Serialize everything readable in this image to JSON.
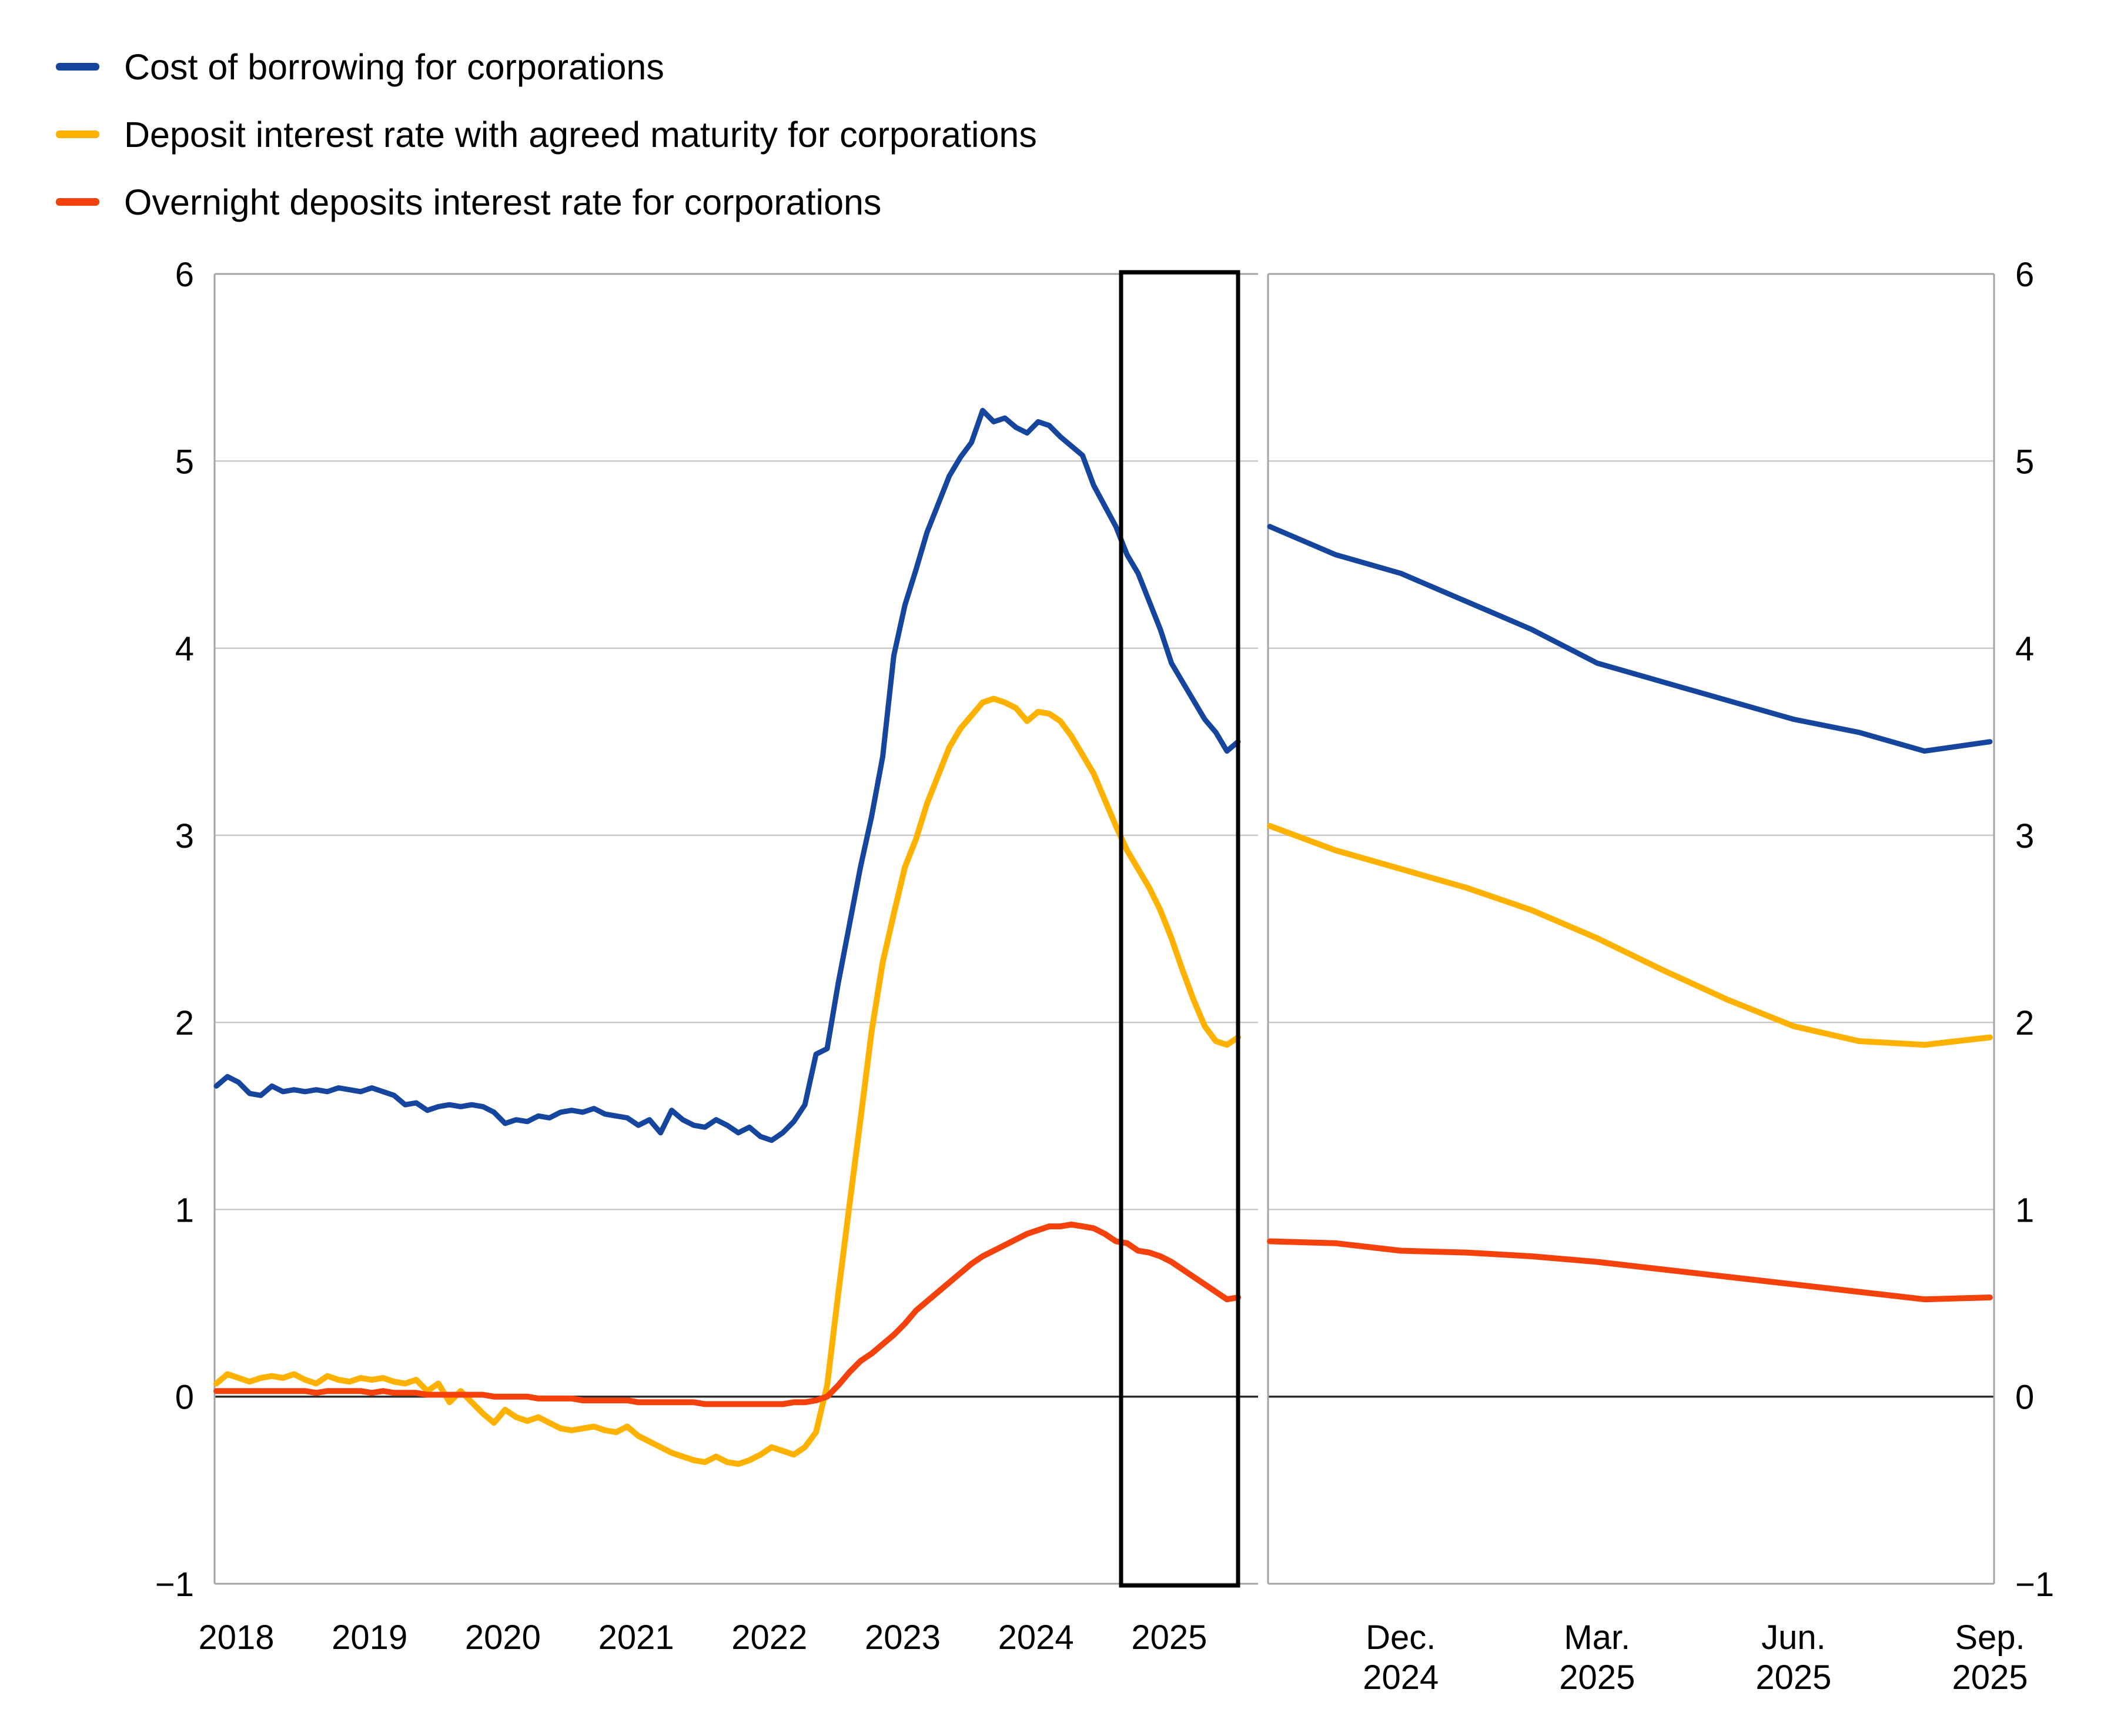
{
  "legend": {
    "items": [
      {
        "label": "Cost of borrowing for corporations",
        "color": "#15459C"
      },
      {
        "label": "Deposit interest rate with agreed maturity for corporations",
        "color": "#FFB100"
      },
      {
        "label": "Overnight deposits interest rate for corporations",
        "color": "#F5420D"
      }
    ]
  },
  "axis": {
    "ymin": -1,
    "ymax": 6,
    "yticks": [
      6,
      5,
      4,
      3,
      2,
      1,
      0,
      -1
    ]
  },
  "chart_data": [
    {
      "type": "line",
      "panel": "main",
      "x_start": "2018-01",
      "x_end": "2025-09",
      "x_freq": "monthly",
      "x_tick_labels": [
        "2018",
        "2019",
        "2020",
        "2021",
        "2022",
        "2023",
        "2024",
        "2025"
      ],
      "ylim": [
        -1,
        6
      ],
      "yticks": [
        6,
        5,
        4,
        3,
        2,
        1,
        0,
        -1
      ],
      "grid": true,
      "highlight_box_on_last_12_months": true,
      "series": [
        {
          "name": "Cost of borrowing for corporations",
          "color": "#15459C",
          "values": [
            1.66,
            1.71,
            1.68,
            1.62,
            1.61,
            1.66,
            1.63,
            1.64,
            1.63,
            1.64,
            1.63,
            1.65,
            1.64,
            1.63,
            1.65,
            1.63,
            1.61,
            1.56,
            1.57,
            1.53,
            1.55,
            1.56,
            1.55,
            1.56,
            1.55,
            1.52,
            1.46,
            1.48,
            1.47,
            1.5,
            1.49,
            1.52,
            1.53,
            1.52,
            1.54,
            1.51,
            1.5,
            1.49,
            1.45,
            1.48,
            1.41,
            1.53,
            1.48,
            1.45,
            1.44,
            1.48,
            1.45,
            1.41,
            1.44,
            1.39,
            1.37,
            1.41,
            1.47,
            1.56,
            1.83,
            1.86,
            2.21,
            2.52,
            2.83,
            3.1,
            3.42,
            3.96,
            4.23,
            4.42,
            4.62,
            4.77,
            4.92,
            5.02,
            5.1,
            5.27,
            5.21,
            5.23,
            5.18,
            5.15,
            5.21,
            5.19,
            5.13,
            5.08,
            5.03,
            4.87,
            4.76,
            4.65,
            4.5,
            4.4,
            4.25,
            4.1,
            3.92,
            3.82,
            3.72,
            3.62,
            3.55,
            3.45,
            3.5
          ]
        },
        {
          "name": "Deposit interest rate with agreed maturity for corporations",
          "color": "#FFB100",
          "values": [
            0.07,
            0.12,
            0.1,
            0.08,
            0.1,
            0.11,
            0.1,
            0.12,
            0.09,
            0.07,
            0.11,
            0.09,
            0.08,
            0.1,
            0.09,
            0.1,
            0.08,
            0.07,
            0.09,
            0.03,
            0.07,
            -0.03,
            0.03,
            -0.03,
            -0.09,
            -0.14,
            -0.07,
            -0.11,
            -0.13,
            -0.11,
            -0.14,
            -0.17,
            -0.18,
            -0.17,
            -0.16,
            -0.18,
            -0.19,
            -0.16,
            -0.21,
            -0.24,
            -0.27,
            -0.3,
            -0.32,
            -0.34,
            -0.35,
            -0.32,
            -0.35,
            -0.36,
            -0.34,
            -0.31,
            -0.27,
            -0.29,
            -0.31,
            -0.27,
            -0.19,
            0.06,
            0.55,
            1.02,
            1.48,
            1.95,
            2.32,
            2.58,
            2.83,
            2.98,
            3.17,
            3.32,
            3.47,
            3.57,
            3.64,
            3.71,
            3.73,
            3.71,
            3.68,
            3.61,
            3.66,
            3.65,
            3.61,
            3.53,
            3.43,
            3.33,
            3.19,
            3.05,
            2.92,
            2.82,
            2.72,
            2.6,
            2.45,
            2.28,
            2.12,
            1.98,
            1.9,
            1.88,
            1.92
          ]
        },
        {
          "name": "Overnight deposits interest rate for corporations",
          "color": "#F5420D",
          "values": [
            0.03,
            0.03,
            0.03,
            0.03,
            0.03,
            0.03,
            0.03,
            0.03,
            0.03,
            0.02,
            0.03,
            0.03,
            0.03,
            0.03,
            0.02,
            0.03,
            0.02,
            0.02,
            0.02,
            0.01,
            0.01,
            0.01,
            0.01,
            0.01,
            0.01,
            0.0,
            0.0,
            0.0,
            0.0,
            -0.01,
            -0.01,
            -0.01,
            -0.01,
            -0.02,
            -0.02,
            -0.02,
            -0.02,
            -0.02,
            -0.03,
            -0.03,
            -0.03,
            -0.03,
            -0.03,
            -0.03,
            -0.04,
            -0.04,
            -0.04,
            -0.04,
            -0.04,
            -0.04,
            -0.04,
            -0.04,
            -0.03,
            -0.03,
            -0.02,
            0.0,
            0.06,
            0.13,
            0.19,
            0.23,
            0.28,
            0.33,
            0.39,
            0.46,
            0.51,
            0.56,
            0.61,
            0.66,
            0.71,
            0.75,
            0.78,
            0.81,
            0.84,
            0.87,
            0.89,
            0.91,
            0.91,
            0.92,
            0.91,
            0.9,
            0.87,
            0.83,
            0.82,
            0.78,
            0.77,
            0.75,
            0.72,
            0.68,
            0.64,
            0.6,
            0.56,
            0.52,
            0.53
          ]
        }
      ]
    },
    {
      "type": "line",
      "panel": "zoom",
      "x_start": "2024-10",
      "x_end": "2025-09",
      "x_freq": "monthly",
      "x_tick_labels": [
        {
          "line1": "Dec.",
          "line2": "2024"
        },
        {
          "line1": "Mar.",
          "line2": "2025"
        },
        {
          "line1": "Jun.",
          "line2": "2025"
        },
        {
          "line1": "Sep.",
          "line2": "2025"
        }
      ],
      "x_tick_month_index": [
        2,
        5,
        8,
        11
      ],
      "ylim": [
        -1,
        6
      ],
      "yticks": [
        6,
        5,
        4,
        3,
        2,
        1,
        0,
        -1
      ],
      "grid": true,
      "series": [
        {
          "name": "Cost of borrowing for corporations",
          "color": "#15459C",
          "values": [
            4.65,
            4.5,
            4.4,
            4.25,
            4.1,
            3.92,
            3.82,
            3.72,
            3.62,
            3.55,
            3.45,
            3.5
          ]
        },
        {
          "name": "Deposit interest rate with agreed maturity for corporations",
          "color": "#FFB100",
          "values": [
            3.05,
            2.92,
            2.82,
            2.72,
            2.6,
            2.45,
            2.28,
            2.12,
            1.98,
            1.9,
            1.88,
            1.92
          ]
        },
        {
          "name": "Overnight deposits interest rate for corporations",
          "color": "#F5420D",
          "values": [
            0.83,
            0.82,
            0.78,
            0.77,
            0.75,
            0.72,
            0.68,
            0.64,
            0.6,
            0.56,
            0.52,
            0.53
          ]
        }
      ]
    }
  ]
}
